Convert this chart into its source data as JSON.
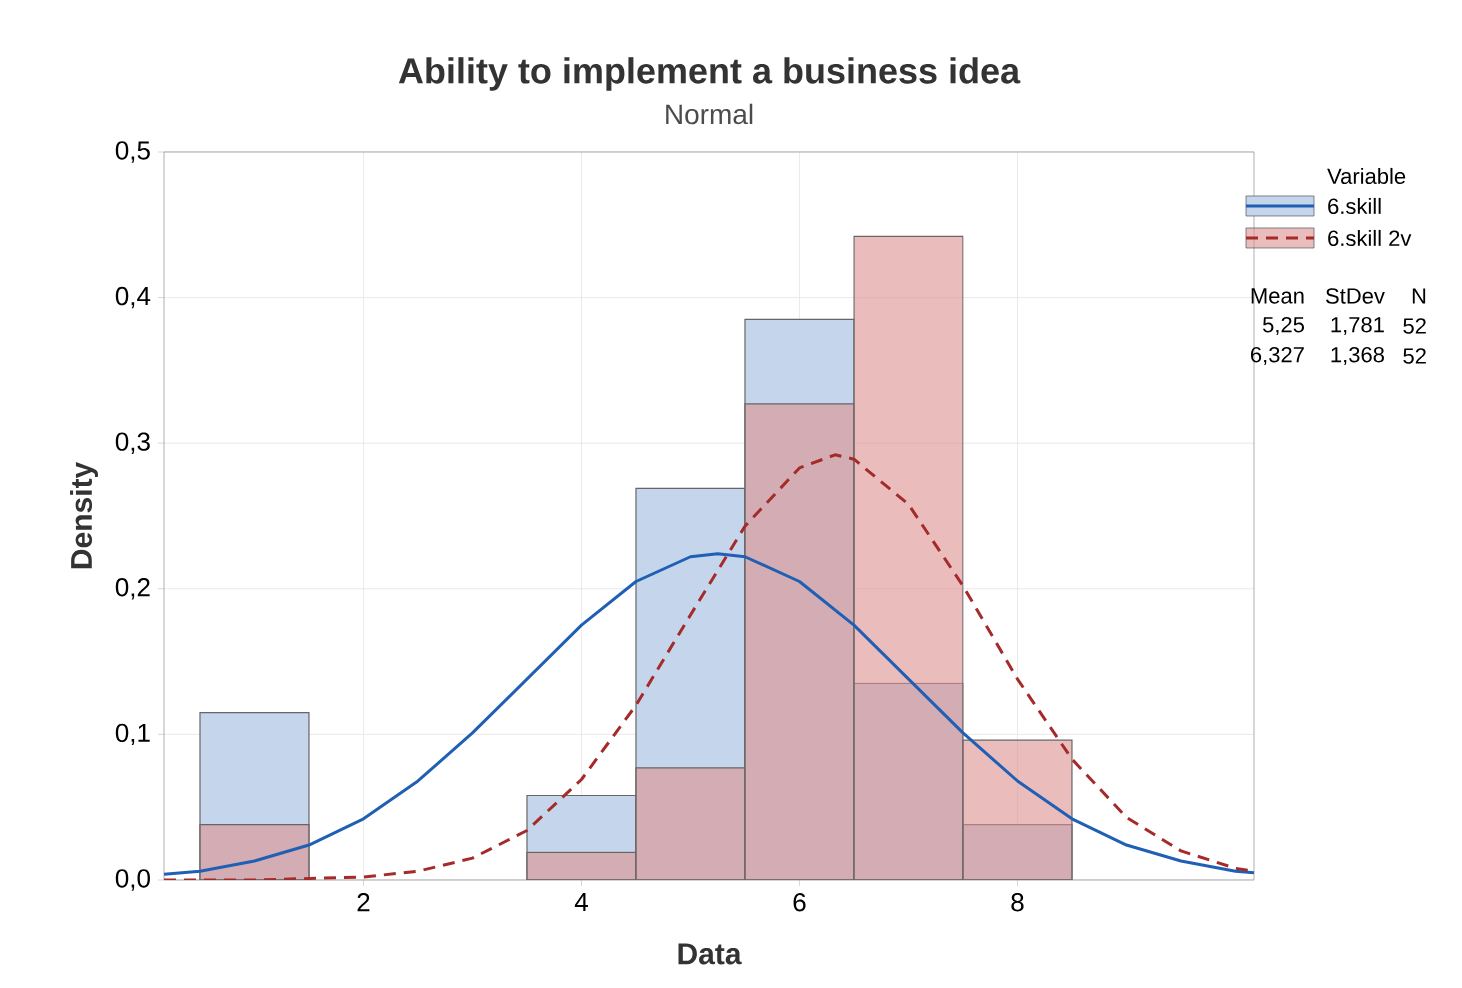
{
  "chart_data": {
    "type": "histogram",
    "title": "Ability to implement a business idea",
    "subtitle": "Normal",
    "xlabel": "Data",
    "ylabel": "Density",
    "legend_title": "Variable",
    "bins": [
      0.5,
      1.5,
      2.5,
      3.5,
      4.5,
      5.5,
      6.5,
      7.5,
      8.5
    ],
    "series": [
      {
        "name": "6.skill",
        "color": "#c5d6ec",
        "values": [
          0.115,
          0,
          0,
          0.058,
          0.269,
          0.385,
          0.135,
          0.038
        ]
      },
      {
        "name": "6.skill 2v",
        "color": "#dc8f8f",
        "values": [
          0.038,
          0,
          0,
          0.019,
          0.077,
          0.327,
          0.442,
          0.096
        ]
      },
      {
        "type": "line",
        "color": "#1f5fb4",
        "line_style": "solid",
        "x": [
          0.17,
          0.5,
          1,
          1.5,
          2,
          2.5,
          3,
          3.5,
          4,
          4.5,
          5,
          5.25,
          5.5,
          6,
          6.5,
          7,
          7.5,
          8,
          8.5,
          9,
          9.5,
          10,
          10.17
        ],
        "values": [
          0.004,
          0.006,
          0.013,
          0.024,
          0.042,
          0.068,
          0.101,
          0.138,
          0.175,
          0.205,
          0.222,
          0.224,
          0.222,
          0.205,
          0.175,
          0.138,
          0.101,
          0.068,
          0.042,
          0.024,
          0.013,
          0.006,
          0.005
        ]
      },
      {
        "type": "line",
        "color": "#a52a2a",
        "line_style": "dashed",
        "x": [
          0.17,
          1,
          2,
          2.5,
          3,
          3.5,
          4,
          4.5,
          5,
          5.5,
          6,
          6.327,
          6.5,
          7,
          7.5,
          8,
          8.5,
          9,
          9.5,
          10,
          10.17
        ],
        "values": [
          0,
          0,
          0.002,
          0.006,
          0.015,
          0.034,
          0.069,
          0.12,
          0.182,
          0.243,
          0.283,
          0.292,
          0.289,
          0.258,
          0.202,
          0.138,
          0.083,
          0.043,
          0.02,
          0.008,
          0.006
        ]
      }
    ],
    "xlim": [
      0.17,
      10.17
    ],
    "ylim": [
      0,
      0.5
    ],
    "xticks": [
      2,
      4,
      6,
      8
    ],
    "yticks": [
      {
        "value": 0,
        "label": "0,0"
      },
      {
        "value": 0.1,
        "label": "0,1"
      },
      {
        "value": 0.2,
        "label": "0,2"
      },
      {
        "value": 0.3,
        "label": "0,3"
      },
      {
        "value": 0.4,
        "label": "0,4"
      },
      {
        "value": 0.5,
        "label": "0,5"
      }
    ],
    "grid": true,
    "legend": "right",
    "marker": "none",
    "annotations": [
      "Mean",
      "StDev",
      "N",
      "5,25",
      "1,781",
      "52",
      "6,327",
      "1,368",
      "52"
    ]
  }
}
